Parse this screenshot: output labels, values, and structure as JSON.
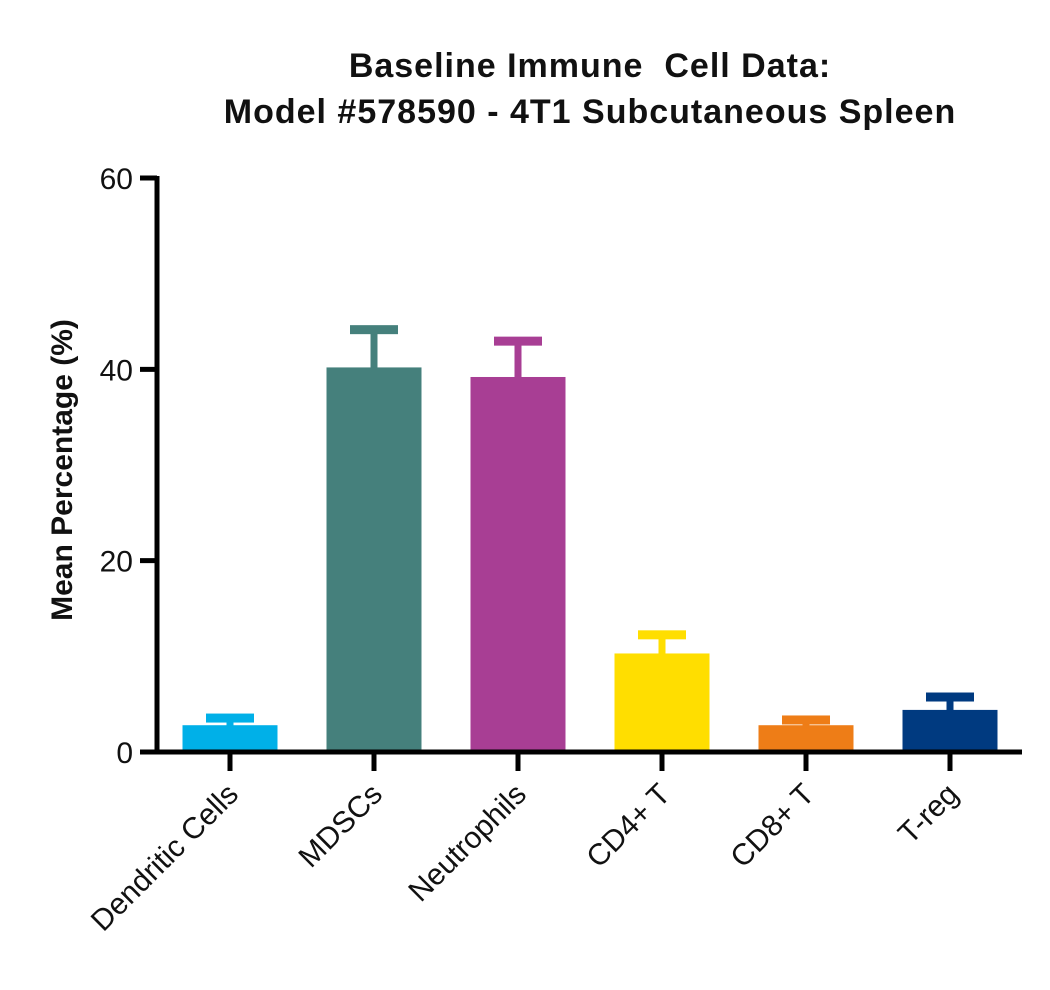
{
  "chart_data": {
    "type": "bar",
    "title_lines": [
      "Baseline Immune  Cell Data:",
      "Model #578590 - 4T1 Subcutaneous Spleen"
    ],
    "xlabel": "",
    "ylabel": "Mean Percentage (%)",
    "ylim": [
      0,
      60
    ],
    "yticks": [
      0,
      20,
      40,
      60
    ],
    "categories": [
      "Dendritic Cells",
      "MDSCs",
      "Neutrophils",
      "CD4+ T",
      "CD8+ T",
      "T-reg"
    ],
    "values": [
      2.8,
      40.2,
      39.2,
      10.3,
      2.8,
      4.4
    ],
    "errors": [
      0.8,
      4.0,
      3.8,
      2.0,
      0.6,
      1.4
    ],
    "colors": [
      "#00B0E8",
      "#45807C",
      "#A83E94",
      "#FFDE00",
      "#EE7D17",
      "#003A80"
    ],
    "grid": false,
    "legend": "none"
  }
}
